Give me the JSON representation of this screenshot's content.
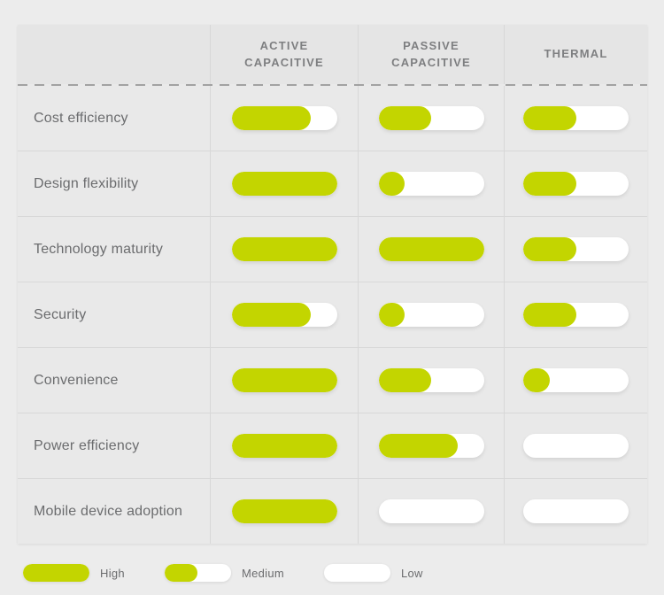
{
  "colors": {
    "page_bg": "#ececec",
    "table_bg": "#e9e9e9",
    "header_bg": "#e5e5e5",
    "border": "#d8d8d8",
    "dash": "#a2a2a2",
    "pill_track": "#ffffff",
    "pill_fill": "#c3d500",
    "header_text": "#7e7f81",
    "label_text": "#6b6c6e"
  },
  "chart_data": {
    "type": "table",
    "title": "",
    "columns": [
      "ACTIVE CAPACITIVE",
      "PASSIVE CAPACITIVE",
      "THERMAL"
    ],
    "rows": [
      {
        "label": "Cost efficiency",
        "values_pct": [
          75,
          50,
          50
        ]
      },
      {
        "label": "Design flexibility",
        "values_pct": [
          100,
          25,
          50
        ]
      },
      {
        "label": "Technology maturity",
        "values_pct": [
          100,
          100,
          50
        ]
      },
      {
        "label": "Security",
        "values_pct": [
          75,
          25,
          50
        ]
      },
      {
        "label": "Convenience",
        "values_pct": [
          100,
          50,
          25
        ]
      },
      {
        "label": "Power efficiency",
        "values_pct": [
          100,
          75,
          0
        ]
      },
      {
        "label": "Mobile device adoption",
        "values_pct": [
          100,
          0,
          0
        ]
      }
    ],
    "value_scale": {
      "High": 100,
      "Medium": 50,
      "Low": 0
    },
    "legend": [
      {
        "label": "High",
        "fill_pct": 100
      },
      {
        "label": "Medium",
        "fill_pct": 50
      },
      {
        "label": "Low",
        "fill_pct": 0
      }
    ],
    "legend_position": "bottom-left"
  }
}
